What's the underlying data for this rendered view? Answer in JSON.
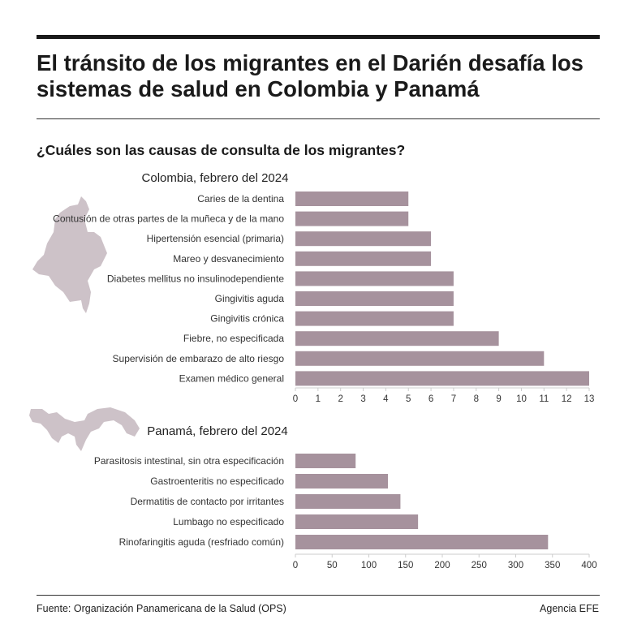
{
  "header": {
    "title": "El tránsito de los migrantes en el Darién desafía los sistemas de salud en Colombia y Panamá",
    "subtitle": "¿Cuáles son las causas de consulta de los migrantes?"
  },
  "footer": {
    "source": "Fuente: Organización Panamericana de la Salud (OPS)",
    "agency": "Agencia EFE"
  },
  "colors": {
    "bar": "#a6929d",
    "map": "#cdc2c8"
  },
  "chart_data": [
    {
      "type": "bar",
      "orientation": "horizontal",
      "title": "Colombia, febrero del 2024",
      "categories": [
        "Caries de la dentina",
        "Contusión de otras partes de la muñeca y de la mano",
        "Hipertensión esencial (primaria)",
        "Mareo y desvanecimiento",
        "Diabetes mellitus no insulinodependiente",
        "Gingivitis aguda",
        "Gingivitis crónica",
        "Fiebre, no especificada",
        "Supervisión de embarazo de alto riesgo",
        "Examen médico general"
      ],
      "values": [
        5,
        5,
        6,
        6,
        7,
        7,
        7,
        9,
        11,
        13
      ],
      "xlim": [
        0,
        13
      ],
      "ticks": [
        0,
        1,
        2,
        3,
        4,
        5,
        6,
        7,
        8,
        9,
        10,
        11,
        12,
        13
      ],
      "grid": false
    },
    {
      "type": "bar",
      "orientation": "horizontal",
      "title": "Panamá, febrero del 2024",
      "categories": [
        "Parasitosis intestinal, sin otra especificación",
        "Gastroenteritis no especificado",
        "Dermatitis de contacto por irritantes",
        "Lumbago no especificado",
        "Rinofaringitis aguda (resfriado común)"
      ],
      "values": [
        82,
        126,
        143,
        167,
        344
      ],
      "xlim": [
        0,
        400
      ],
      "ticks": [
        0,
        50,
        100,
        150,
        200,
        250,
        300,
        350,
        400
      ],
      "grid": false
    }
  ]
}
